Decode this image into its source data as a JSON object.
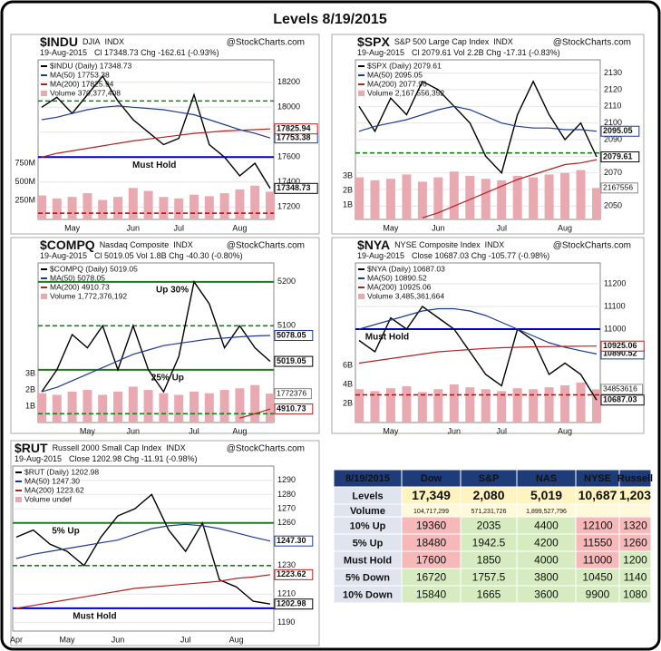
{
  "title": "Levels 8/19/2015",
  "chart_data": [
    {
      "type": "line",
      "symbol": "$INDU",
      "description": "DJIA",
      "exchange": "INDX",
      "watermark": "@StockCharts.com",
      "date": "19-Aug-2015",
      "quote": "Cl 17348.73  Chg -162.61 (-0.93%)",
      "categories": [
        null,
        null,
        "May",
        null,
        null,
        null,
        "Jun",
        null,
        null,
        "Jul",
        null,
        null,
        null,
        "Aug",
        null,
        null
      ],
      "series": [
        {
          "name": "$INDU (Daily) 17348.73",
          "color": "#000000",
          "tag": "17348.73",
          "values": [
            18000,
            18080,
            17950,
            18100,
            18250,
            18050,
            17900,
            17800,
            17700,
            17750,
            18100,
            17700,
            17600,
            17450,
            17550,
            17348.73
          ]
        },
        {
          "name": "MA(50) 17753.38",
          "color": "#1f3a93",
          "tag": "17753.38",
          "values": [
            17900,
            17920,
            17950,
            17980,
            18000,
            18010,
            18000,
            17990,
            17980,
            17960,
            17940,
            17900,
            17860,
            17820,
            17790,
            17753.38
          ]
        },
        {
          "name": "MA(200) 17825.94",
          "color": "#b22222",
          "tag": "17825.94",
          "values": [
            17600,
            17630,
            17650,
            17670,
            17690,
            17710,
            17730,
            17745,
            17760,
            17775,
            17790,
            17800,
            17810,
            17815,
            17820,
            17825.94
          ]
        }
      ],
      "volume": {
        "name": "Volume 370,377,408",
        "color": "#e9a9b1",
        "values": [
          320000000,
          280000000,
          300000000,
          350000000,
          260000000,
          300000000,
          420000000,
          380000000,
          300000000,
          280000000,
          330000000,
          310000000,
          350000000,
          400000000,
          450000000,
          370377408
        ]
      },
      "vlim": [
        0,
        2130000000
      ],
      "vticks": [
        {
          "value": 250000000,
          "label": "250M"
        },
        {
          "value": 500000000,
          "label": "500M"
        },
        {
          "value": 750000000,
          "label": "750M"
        }
      ],
      "ylim": [
        17100,
        18380
      ],
      "yticks": [
        17200,
        17400,
        17600,
        17800,
        18000,
        18200
      ],
      "grid": true,
      "levels": [
        {
          "value": 18050,
          "color": "#1b7a1b",
          "dash": true
        },
        {
          "value": 17600,
          "color": "#0000cc",
          "dash": false,
          "label": "Must Hold"
        },
        {
          "value": 17150,
          "color": "#cc0000",
          "dash": true
        }
      ]
    },
    {
      "type": "line",
      "symbol": "$SPX",
      "description": "S&P 500 Large Cap Index",
      "exchange": "INDX",
      "watermark": "@StockCharts.com",
      "date": "19-Aug-2015",
      "quote": "Cl 2079.61  Vol 2.2B  Chg -17.31 (-0.83%)",
      "categories": [
        null,
        null,
        "May",
        null,
        null,
        "Jun",
        null,
        null,
        null,
        "Jul",
        null,
        null,
        null,
        "Aug",
        null,
        null
      ],
      "series": [
        {
          "name": "$SPX (Daily) 2079.61",
          "color": "#000000",
          "tag": "2079.61",
          "values": [
            2110,
            2095,
            2115,
            2105,
            2125,
            2120,
            2110,
            2100,
            2080,
            2070,
            2105,
            2125,
            2105,
            2090,
            2100,
            2079.61
          ]
        },
        {
          "name": "MA(50) 2095.05",
          "color": "#1f3a93",
          "tag": "2095.05",
          "values": [
            2095,
            2098,
            2100,
            2102,
            2105,
            2108,
            2110,
            2108,
            2104,
            2100,
            2098,
            2097,
            2097,
            2096,
            2096,
            2095.05
          ]
        },
        {
          "name": "MA(200) 2077.96",
          "color": "#b22222",
          "values": [
            null,
            null,
            null,
            null,
            2043,
            2046,
            2050,
            2054,
            2058,
            2062,
            2066,
            2069,
            2072,
            2075,
            2076,
            2077.96
          ]
        }
      ],
      "volume": {
        "name": "Volume 2,167,556,352",
        "color": "#e9a9b1",
        "tag": "2167556",
        "values": [
          2900000000,
          2700000000,
          2800000000,
          3100000000,
          2600000000,
          2900000000,
          3300000000,
          3000000000,
          2800000000,
          2700000000,
          3000000000,
          2900000000,
          3100000000,
          3200000000,
          3400000000,
          2167556352
        ]
      },
      "vlim": [
        0,
        11000000000
      ],
      "vticks": [
        {
          "value": 1000000000,
          "label": "1B"
        },
        {
          "value": 2000000000,
          "label": "2B"
        },
        {
          "value": 3000000000,
          "label": "3B"
        }
      ],
      "ylim": [
        2042,
        2138
      ],
      "yticks": [
        2050,
        2060,
        2070,
        2080,
        2090,
        2100,
        2110,
        2120,
        2130
      ],
      "grid": true,
      "levels": [
        {
          "value": 2082,
          "color": "#1b7a1b",
          "dash": true
        }
      ]
    },
    {
      "type": "line",
      "symbol": "$COMPQ",
      "description": "Nasdaq Composite",
      "exchange": "INDX",
      "watermark": "@StockCharts.com",
      "date": "19-Aug-2015",
      "quote": "Cl 5019.05  Vol 1.8B  Chg -40.30 (-0.80%)",
      "categories": [
        null,
        null,
        null,
        "May",
        null,
        null,
        "Jun",
        null,
        null,
        null,
        "Jul",
        null,
        null,
        "Aug",
        null,
        null
      ],
      "series": [
        {
          "name": "$COMPQ (Daily) 5019.05",
          "color": "#000000",
          "tag": "5019.05",
          "values": [
            4950,
            5000,
            5080,
            5050,
            5100,
            5000,
            5100,
            5000,
            4950,
            5030,
            5200,
            5150,
            5050,
            5100,
            5050,
            5019.05
          ]
        },
        {
          "name": "MA(50) 5078.05",
          "color": "#1f3a93",
          "tag": "5078.05",
          "values": [
            4950,
            4960,
            4975,
            4990,
            5005,
            5020,
            5035,
            5045,
            5055,
            5060,
            5065,
            5070,
            5072,
            5075,
            5077,
            5078.05
          ]
        },
        {
          "name": "MA(200) 4910.73",
          "color": "#b22222",
          "tag": "4910.73",
          "values": [
            null,
            null,
            null,
            null,
            null,
            null,
            null,
            null,
            null,
            null,
            null,
            null,
            null,
            4890,
            4900,
            4910.73
          ]
        }
      ],
      "volume": {
        "name": "Volume 1,772,376,192",
        "color": "#e9a9b1",
        "tag": "1772376",
        "values": [
          1800000000,
          1700000000,
          1900000000,
          2000000000,
          1700000000,
          1900000000,
          2200000000,
          2000000000,
          1800000000,
          1700000000,
          1900000000,
          1800000000,
          2000000000,
          2100000000,
          2300000000,
          1772376192
        ]
      },
      "vlim": [
        0,
        9800000000
      ],
      "vticks": [
        {
          "value": 1000000000,
          "label": "1B"
        },
        {
          "value": 2000000000,
          "label": "2B"
        },
        {
          "value": 3000000000,
          "label": "3B"
        }
      ],
      "ylim": [
        4880,
        5243
      ],
      "yticks": [
        5100,
        5200
      ],
      "grid": true,
      "levels": [
        {
          "value": 5200,
          "color": "#1b7a1b",
          "dash": false,
          "label": "Up 30%"
        },
        {
          "value": 5100,
          "color": "#1b7a1b",
          "dash": true
        },
        {
          "value": 5000,
          "color": "#1b7a1b",
          "dash": false,
          "label": "25% Up"
        },
        {
          "value": 4900,
          "color": "#1b7a1b",
          "dash": true
        }
      ]
    },
    {
      "type": "line",
      "symbol": "$NYA",
      "description": "NYSE Composite Index",
      "exchange": "INDX",
      "watermark": "@StockCharts.com",
      "date": "19-Aug-2015",
      "quote": "Close 10687.03  Chg -105.77 (-0.98%)",
      "categories": [
        null,
        null,
        "May",
        null,
        null,
        null,
        "Jun",
        null,
        null,
        "Jul",
        null,
        null,
        null,
        "Aug",
        null,
        null
      ],
      "series": [
        {
          "name": "$NYA (Daily) 10687.03",
          "color": "#000000",
          "tag": "10687.03",
          "values": [
            10950,
            10900,
            11050,
            11000,
            11100,
            11050,
            11000,
            10900,
            10800,
            10750,
            11000,
            10950,
            10800,
            10850,
            10800,
            10687.03
          ]
        },
        {
          "name": "MA(50) 10890.52",
          "color": "#1f3a93",
          "tag": "10890.52",
          "values": [
            11000,
            11020,
            11040,
            11060,
            11080,
            11090,
            11090,
            11080,
            11060,
            11030,
            11000,
            10970,
            10940,
            10920,
            10905,
            10890.52
          ]
        },
        {
          "name": "MA(200) 10925.06",
          "color": "#b22222",
          "tag": "10925.06",
          "values": [
            10850,
            10860,
            10870,
            10880,
            10890,
            10900,
            10905,
            10910,
            10915,
            10918,
            10920,
            10922,
            10923,
            10924,
            10925,
            10925.06
          ]
        }
      ],
      "volume": {
        "name": "Volume 3,485,361,664",
        "color": "#e9a9b1",
        "tag": "34853616",
        "values": [
          3500000000,
          3300000000,
          3600000000,
          3800000000,
          3200000000,
          3500000000,
          4000000000,
          3700000000,
          3500000000,
          3300000000,
          3600000000,
          3500000000,
          3700000000,
          3900000000,
          4200000000,
          3485361664
        ]
      },
      "vlim": [
        0,
        16760000000
      ],
      "vticks": [
        {
          "value": 2000000000,
          "label": "2B"
        },
        {
          "value": 4000000000,
          "label": "4B"
        },
        {
          "value": 6000000000,
          "label": "6B"
        }
      ],
      "ylim": [
        10588,
        11292
      ],
      "yticks": [
        11000,
        11100,
        11200
      ],
      "grid": true,
      "levels": [
        {
          "value": 11000,
          "color": "#0000cc",
          "dash": false,
          "label": "Must Hold"
        },
        {
          "value": 10710,
          "color": "#cc0000",
          "dash": true
        }
      ]
    },
    {
      "type": "line",
      "symbol": "$RUT",
      "description": "Russell 2000 Small Cap Index",
      "exchange": "INDX",
      "watermark": "@StockCharts.com",
      "date": "19-Aug-2015",
      "quote": "Close 1202.98  Chg -11.91 (-0.98%)",
      "categories": [
        "Apr",
        null,
        null,
        "May",
        null,
        null,
        "Jun",
        null,
        null,
        null,
        "Jul",
        null,
        null,
        "Aug",
        null,
        null
      ],
      "series": [
        {
          "name": "$RUT (Daily) 1202.98",
          "color": "#000000",
          "tag": "1202.98",
          "values": [
            1250,
            1255,
            1245,
            1240,
            1230,
            1250,
            1265,
            1270,
            1280,
            1255,
            1240,
            1260,
            1220,
            1215,
            1205,
            1202.98
          ]
        },
        {
          "name": "MA(50) 1247.30",
          "color": "#1f3a93",
          "tag": "1247.30",
          "values": [
            1235,
            1238,
            1240,
            1242,
            1244,
            1246,
            1248,
            1252,
            1256,
            1258,
            1259,
            1258,
            1256,
            1253,
            1250,
            1247.3
          ]
        },
        {
          "name": "MA(200) 1223.62",
          "color": "#b22222",
          "tag": "1223.62",
          "values": [
            1200,
            1202,
            1204,
            1206,
            1208,
            1210,
            1212,
            1214,
            1215,
            1216,
            1217,
            1218,
            1219,
            1221,
            1222,
            1223.62
          ]
        }
      ],
      "volume": {
        "name": "Volume undef",
        "color": "#e9a9b1"
      },
      "ylim": [
        1184,
        1300
      ],
      "yticks": [
        1190,
        1210,
        1230,
        1260,
        1270,
        1280,
        1290
      ],
      "grid": true,
      "levels": [
        {
          "value": 1260,
          "color": "#1b7a1b",
          "dash": false,
          "label": "5% Up"
        },
        {
          "value": 1230,
          "color": "#1b7a1b",
          "dash": true
        },
        {
          "value": 1200,
          "color": "#0000cc",
          "dash": false,
          "label": "Must Hold"
        }
      ]
    }
  ],
  "table": {
    "header": [
      "8/19/2015",
      "Dow",
      "S&P",
      "NAS",
      "NYSE",
      "Russell"
    ],
    "header_color": "#1e3c7a",
    "label_color": "#dfe4ee",
    "rows": [
      {
        "label": "Levels",
        "values": [
          "17,349",
          "2,080",
          "5,019",
          "10,687",
          "1,203"
        ],
        "colors": [
          "#fff3c0",
          "#fff3c0",
          "#fff3c0",
          "#fff3c0",
          "#fff3c0"
        ]
      },
      {
        "label": "Volume",
        "values": [
          "104,717,299",
          "571,231,726",
          "1,899,527,796",
          null,
          null
        ],
        "colors": [
          "#fff9dc",
          "#fff9dc",
          "#fff9dc",
          "#fff9dc",
          "#fff9dc"
        ]
      },
      {
        "label": "10% Up",
        "values": [
          "19360",
          "2035",
          "4400",
          "12100",
          "1320"
        ],
        "colors": [
          "#f6b8b8",
          "#d6ecc0",
          "#d6ecc0",
          "#f6b8b8",
          "#f6b8b8"
        ]
      },
      {
        "label": "5% Up",
        "values": [
          "18480",
          "1942.5",
          "4200",
          "11550",
          "1260"
        ],
        "colors": [
          "#f6b8b8",
          "#d6ecc0",
          "#d6ecc0",
          "#f6b8b8",
          "#f6b8b8"
        ]
      },
      {
        "label": "Must Hold",
        "values": [
          "17600",
          "1850",
          "4000",
          "11000",
          "1200"
        ],
        "colors": [
          "#f6b8b8",
          "#d6ecc0",
          "#d6ecc0",
          "#f6b8b8",
          "#d6ecc0"
        ]
      },
      {
        "label": "5% Down",
        "values": [
          "16720",
          "1757.5",
          "3800",
          "10450",
          "1140"
        ],
        "colors": [
          "#d6ecc0",
          "#d6ecc0",
          "#d6ecc0",
          "#d6ecc0",
          "#d6ecc0"
        ]
      },
      {
        "label": "10% Down",
        "values": [
          "15840",
          "1665",
          "3600",
          "9900",
          "1080"
        ],
        "colors": [
          "#d6ecc0",
          "#d6ecc0",
          "#d6ecc0",
          "#d6ecc0",
          "#d6ecc0"
        ]
      }
    ]
  }
}
